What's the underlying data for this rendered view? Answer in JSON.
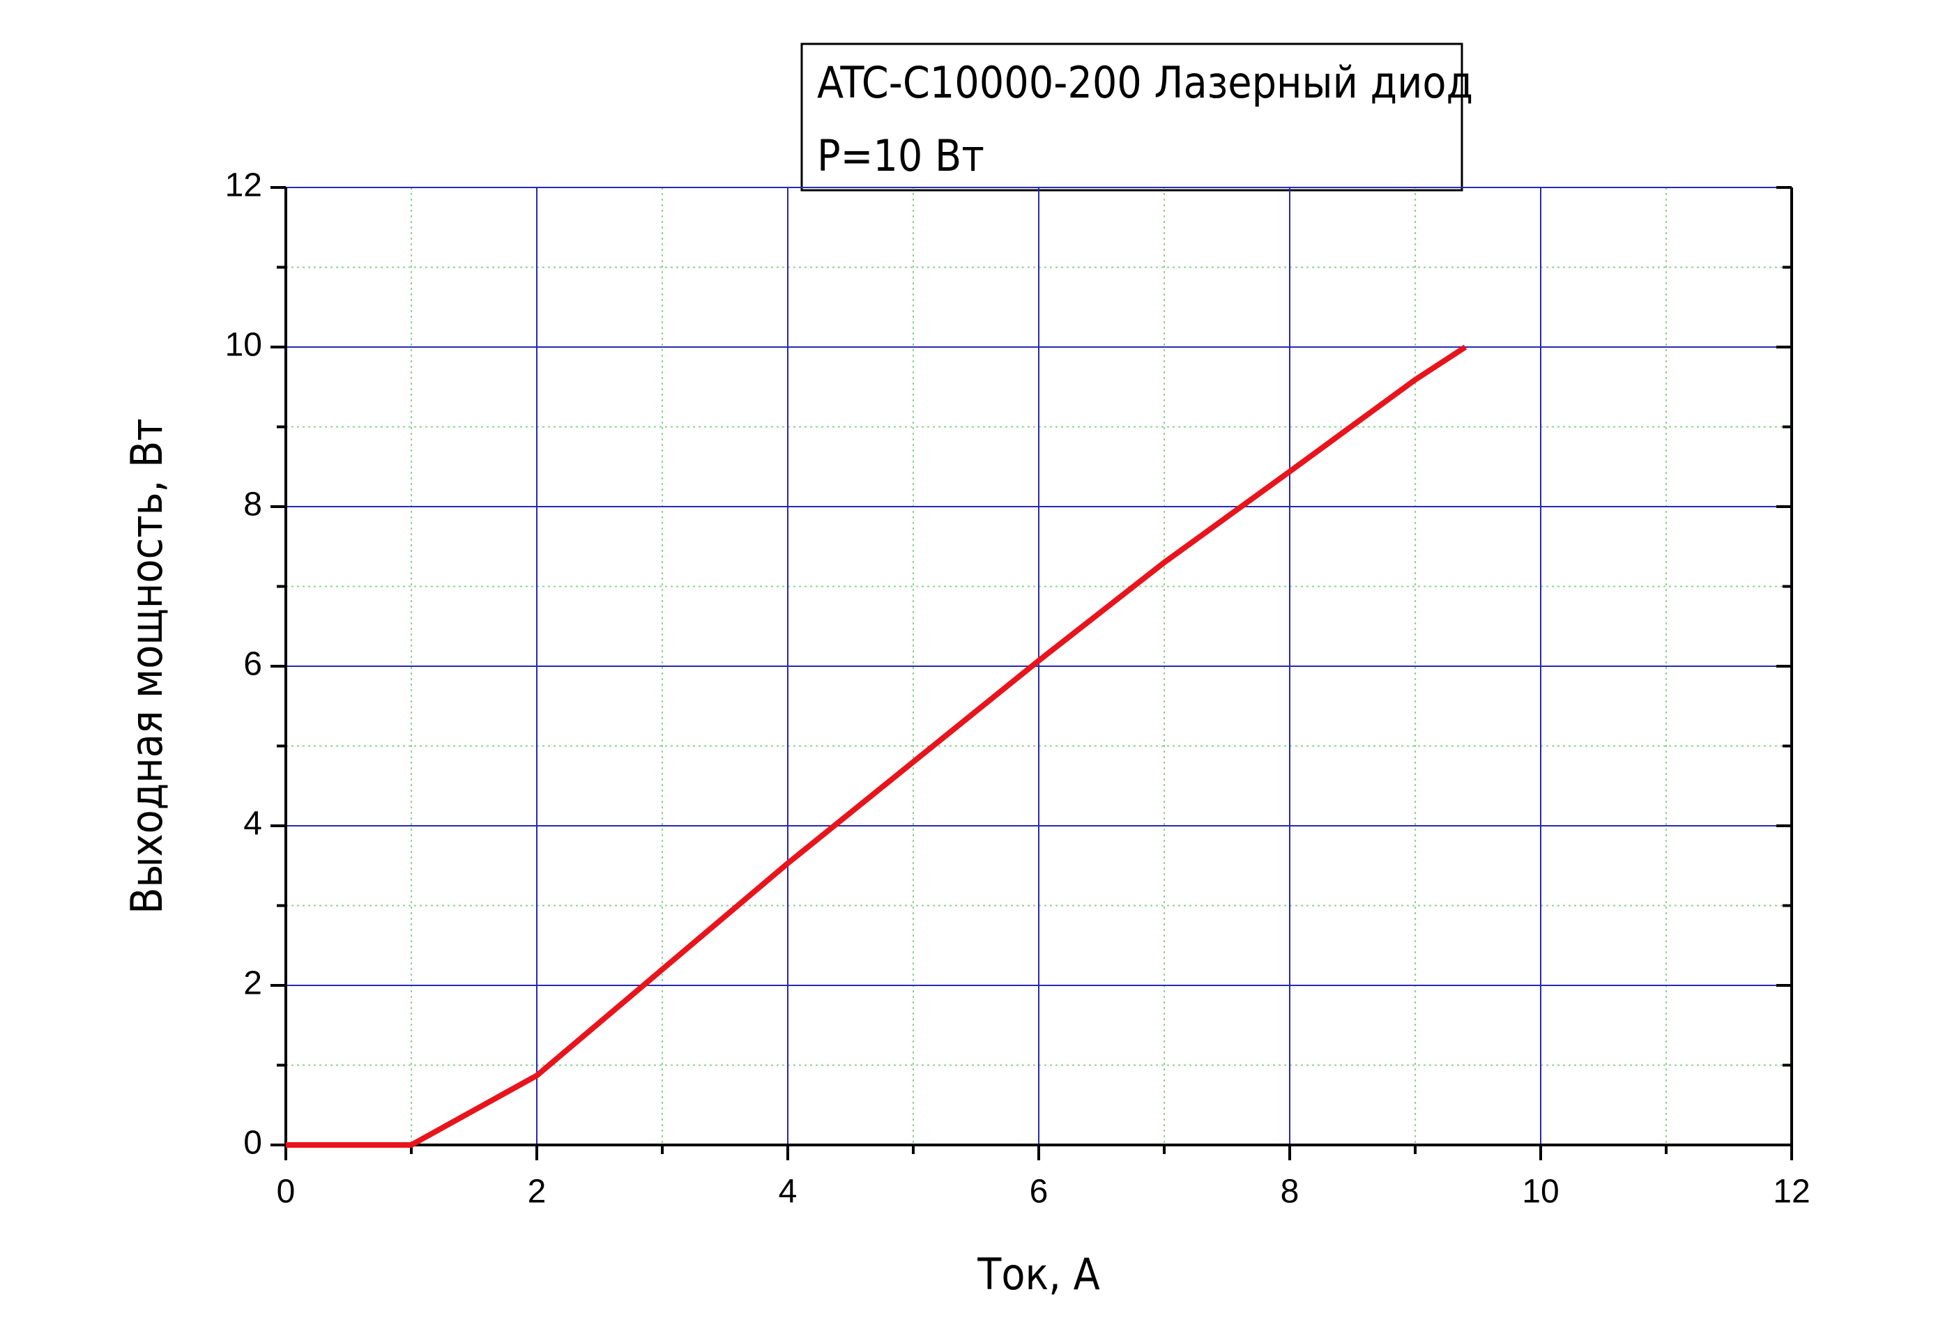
{
  "chart_data": {
    "type": "line",
    "title_lines": [
      "ATC-C10000-200 Лазерный диод",
      "P=10 Вт"
    ],
    "x_label": "Ток, А",
    "y_label": "Выходная мощность, Вт",
    "x": [
      0,
      1,
      2,
      3,
      4,
      5,
      6,
      7,
      8,
      9,
      9.4
    ],
    "series": [
      {
        "color": "#e8141c",
        "values": [
          0,
          0,
          0.87,
          2.2,
          3.53,
          4.8,
          6.07,
          7.3,
          8.44,
          9.59,
          10
        ]
      }
    ],
    "xlim": [
      0,
      12
    ],
    "ylim": [
      0,
      12
    ],
    "xticks": [
      0,
      2,
      4,
      6,
      8,
      10,
      12
    ],
    "yticks": [
      0,
      2,
      4,
      6,
      8,
      10,
      12
    ],
    "grid": true,
    "grid_color": "#2828b4",
    "minor_grid": true,
    "minor_grid_color": "#8fd18f"
  }
}
